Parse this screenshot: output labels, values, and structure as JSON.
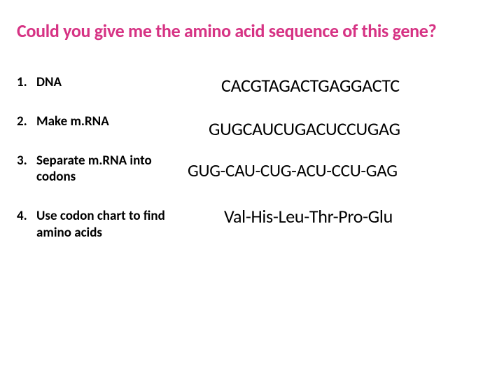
{
  "title": "Could you give me the amino acid sequence of this gene?",
  "title_color": "#d63384",
  "text_color": "#000000",
  "background_color": "#ffffff",
  "steps": [
    {
      "num": "1.",
      "label": "DNA"
    },
    {
      "num": "2.",
      "label": "Make m.RNA"
    },
    {
      "num": "3.",
      "label": "Separate m.RNA into codons"
    },
    {
      "num": "4.",
      "label": "Use codon chart to find amino acids"
    }
  ],
  "sequences": {
    "dna": "CACGTAGACTGAGGACTC",
    "mrna": "GUGCAUCUGACUCCUGAG",
    "codons": "GUG-CAU-CUG-ACU-CCU-GAG",
    "amino": "Val-His-Leu-Thr-Pro-Glu"
  },
  "fonts": {
    "title_size": 26,
    "step_size": 19,
    "seq_size": 26
  }
}
